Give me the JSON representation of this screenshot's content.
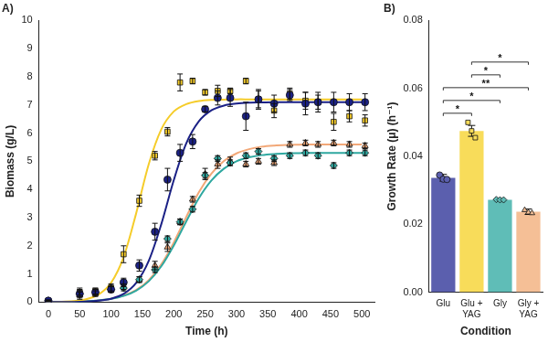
{
  "chart_data": [
    {
      "type": "scatter",
      "title": "A)",
      "x_label": "Time (h)",
      "y_label": "Biomass (g/L)",
      "xlim": [
        -15,
        520
      ],
      "xticks": [
        0,
        50,
        100,
        150,
        200,
        250,
        300,
        350,
        400,
        450,
        500
      ],
      "ylim": [
        0,
        10
      ],
      "yticks": [
        0,
        1,
        2,
        3,
        4,
        5,
        6,
        7,
        8,
        9,
        10
      ],
      "grid": false,
      "series": [
        {
          "name": "Glu",
          "color": "#1b2186",
          "marker": "circle",
          "x": [
            0,
            50,
            75,
            100,
            120,
            145,
            170,
            190,
            210,
            230,
            250,
            270,
            290,
            315,
            335,
            360,
            385,
            410,
            430,
            455,
            480,
            505
          ],
          "values": [
            0.05,
            0.3,
            0.35,
            0.45,
            0.7,
            1.3,
            2.5,
            4.35,
            5.3,
            5.7,
            6.85,
            7.25,
            7.25,
            6.6,
            7.2,
            7.05,
            7.35,
            7.05,
            7.1,
            7.1,
            7.1,
            7.1
          ],
          "errors": [
            0.02,
            0.2,
            0.1,
            0.1,
            0.15,
            0.2,
            0.3,
            0.4,
            0.3,
            0.25,
            0.1,
            0.25,
            0.3,
            0.5,
            0.3,
            0.3,
            0.2,
            0.4,
            0.35,
            0.35,
            0.3,
            0.3
          ],
          "fit": {
            "x": [
              0,
              20,
              40,
              60,
              80,
              100,
              120,
              140,
              160,
              180,
              200,
              220,
              240,
              260,
              280,
              300,
              320,
              340,
              360,
              380,
              400,
              420,
              440,
              460,
              480,
              500
            ],
            "values": [
              0.001,
              0.003,
              0.008,
              0.02,
              0.05,
              0.12,
              0.29,
              0.68,
              1.46,
              2.76,
              4.33,
              5.64,
              6.42,
              6.81,
              6.98,
              7.05,
              7.08,
              7.09,
              7.1,
              7.1,
              7.1,
              7.1,
              7.1,
              7.1,
              7.1,
              7.1
            ]
          }
        },
        {
          "name": "Glu + YAG",
          "color": "#f5cc2a",
          "marker": "square",
          "x": [
            0,
            50,
            75,
            100,
            120,
            145,
            170,
            190,
            210,
            230,
            250,
            270,
            290,
            315,
            335,
            360,
            385,
            410,
            430,
            455,
            480,
            505
          ],
          "values": [
            0.05,
            0.35,
            0.4,
            0.5,
            1.7,
            3.6,
            5.2,
            6.05,
            7.8,
            7.85,
            7.45,
            7.5,
            7.5,
            7.85,
            7.2,
            6.8,
            7.4,
            7.15,
            7.1,
            6.4,
            6.6,
            6.45
          ],
          "errors": [
            0.02,
            0.1,
            0.1,
            0.15,
            0.3,
            0.2,
            0.15,
            0.15,
            0.3,
            0.1,
            0.1,
            0.2,
            0.1,
            0.1,
            0.35,
            0.25,
            0.2,
            0.3,
            0.25,
            0.3,
            0.2,
            0.2
          ],
          "fit": {
            "x": [
              0,
              20,
              40,
              60,
              80,
              100,
              120,
              140,
              160,
              180,
              200,
              220,
              240,
              260,
              280,
              300,
              320,
              340,
              360,
              380,
              400,
              420,
              440,
              460,
              480,
              500
            ],
            "values": [
              0.005,
              0.014,
              0.038,
              0.101,
              0.269,
              0.686,
              1.6,
              3.15,
              4.89,
              6.13,
              6.77,
              7.03,
              7.14,
              7.18,
              7.19,
              7.2,
              7.2,
              7.2,
              7.2,
              7.2,
              7.2,
              7.2,
              7.2,
              7.2,
              7.2,
              7.2
            ]
          }
        },
        {
          "name": "Gly",
          "color": "#2fa8a0",
          "marker": "diamond",
          "x": [
            0,
            50,
            75,
            100,
            120,
            145,
            170,
            190,
            210,
            230,
            250,
            270,
            290,
            315,
            335,
            360,
            385,
            410,
            430,
            455,
            480,
            505
          ],
          "values": [
            0.05,
            0.3,
            0.35,
            0.45,
            0.5,
            0.8,
            1.15,
            2.25,
            2.85,
            3.3,
            4.5,
            5.1,
            4.95,
            5.2,
            5.35,
            5.1,
            5.2,
            5.3,
            5.2,
            4.85,
            5.3,
            5.3
          ],
          "errors": [
            0.02,
            0.1,
            0.1,
            0.1,
            0.1,
            0.1,
            0.1,
            0.1,
            0.1,
            0.1,
            0.1,
            0.1,
            0.1,
            0.1,
            0.1,
            0.1,
            0.1,
            0.1,
            0.1,
            0.1,
            0.1,
            0.1
          ],
          "fit": {
            "x": [
              0,
              20,
              40,
              60,
              80,
              100,
              120,
              140,
              160,
              180,
              200,
              220,
              240,
              260,
              280,
              300,
              320,
              340,
              360,
              380,
              400,
              420,
              440,
              460,
              480,
              500
            ],
            "values": [
              0.004,
              0.008,
              0.016,
              0.032,
              0.061,
              0.116,
              0.22,
              0.41,
              0.74,
              1.27,
              2.01,
              2.87,
              3.69,
              4.32,
              4.74,
              5.0,
              5.14,
              5.22,
              5.26,
              5.28,
              5.29,
              5.3,
              5.3,
              5.3,
              5.3,
              5.3
            ]
          }
        },
        {
          "name": "Gly + YAG",
          "color": "#f2a878",
          "marker": "triangle",
          "x": [
            0,
            50,
            75,
            100,
            120,
            145,
            170,
            190,
            210,
            230,
            250,
            270,
            290,
            315,
            335,
            360,
            385,
            410,
            430,
            455,
            480,
            505
          ],
          "values": [
            0.05,
            0.25,
            0.3,
            0.5,
            0.55,
            0.8,
            1.3,
            1.95,
            2.85,
            3.65,
            4.55,
            4.9,
            5.0,
            4.9,
            5.0,
            4.95,
            5.6,
            5.65,
            5.6,
            5.65,
            5.6,
            5.55
          ],
          "errors": [
            0.02,
            0.1,
            0.1,
            0.1,
            0.1,
            0.1,
            0.15,
            0.15,
            0.1,
            0.1,
            0.2,
            0.15,
            0.15,
            0.1,
            0.1,
            0.1,
            0.1,
            0.1,
            0.1,
            0.1,
            0.1,
            0.1
          ],
          "fit": {
            "x": [
              0,
              20,
              40,
              60,
              80,
              100,
              120,
              140,
              160,
              180,
              200,
              220,
              240,
              260,
              280,
              300,
              320,
              340,
              360,
              380,
              400,
              420,
              440,
              460,
              480,
              500
            ],
            "values": [
              0.004,
              0.008,
              0.017,
              0.034,
              0.064,
              0.122,
              0.23,
              0.43,
              0.78,
              1.34,
              2.12,
              3.03,
              3.9,
              4.56,
              5.01,
              5.28,
              5.43,
              5.52,
              5.56,
              5.58,
              5.59,
              5.6,
              5.6,
              5.6,
              5.6,
              5.6
            ]
          }
        }
      ]
    },
    {
      "type": "bar",
      "title": "B)",
      "x_label": "Condition",
      "y_label": "Growth Rate (μ) (h⁻¹)",
      "categories": [
        "Glu",
        "Glu + YAG",
        "Gly",
        "Gly + YAG"
      ],
      "values": [
        0.0337,
        0.0475,
        0.0272,
        0.0237
      ],
      "errors": [
        0.001,
        0.0016,
        0.0002,
        0.0008
      ],
      "replicates": [
        [
          0.0345,
          0.0333,
          0.0332
        ],
        [
          0.05,
          0.0475,
          0.0455
        ],
        [
          0.0273,
          0.0272,
          0.0272
        ],
        [
          0.0242,
          0.0235,
          0.0233
        ]
      ],
      "colors": [
        "#5b5fae",
        "#f8dc5a",
        "#5fbdb7",
        "#f5bf96"
      ],
      "ylim": [
        0,
        0.08
      ],
      "yticks": [
        {
          "value": 0,
          "label": "0.00"
        },
        {
          "value": 0.02,
          "label": "0.02"
        },
        {
          "value": 0.04,
          "label": "0.04"
        },
        {
          "value": 0.06,
          "label": "0.06"
        },
        {
          "value": 0.08,
          "label": "0.08"
        }
      ],
      "grid": false,
      "comparisons": [
        {
          "from": "Glu",
          "to": "Glu + YAG",
          "label": "*"
        },
        {
          "from": "Glu",
          "to": "Gly",
          "label": "*"
        },
        {
          "from": "Glu",
          "to": "Gly + YAG",
          "label": "**"
        },
        {
          "from": "Glu + YAG",
          "to": "Gly",
          "label": "*"
        },
        {
          "from": "Glu + YAG",
          "to": "Gly + YAG",
          "label": "*"
        }
      ]
    }
  ]
}
